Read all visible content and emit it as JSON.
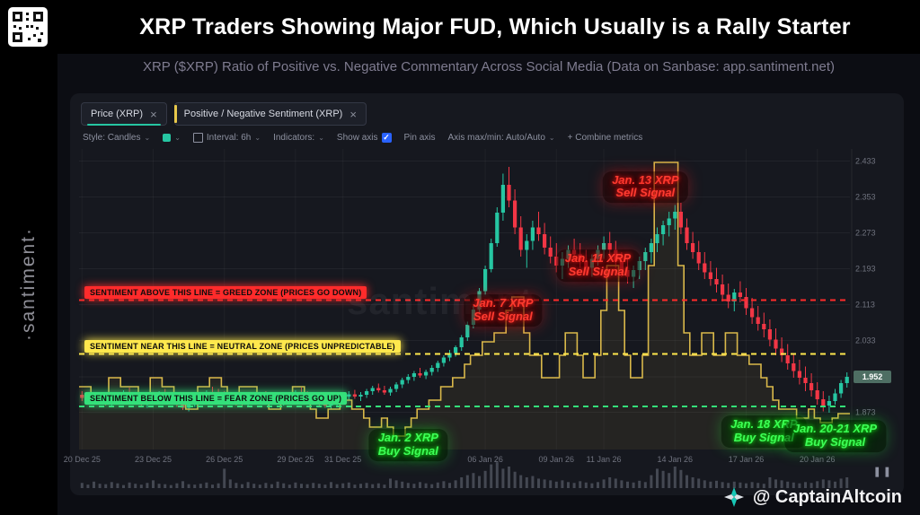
{
  "header": {
    "title": "XRP Traders Showing Major FUD, Which Usually is a Rally Starter",
    "subtitle": "XRP ($XRP) Ratio of Positive vs. Negative Commentary Across Social Media (Data on Sanbase: app.santiment.net)"
  },
  "brand": {
    "vertical_text": "·santiment·"
  },
  "icons": {
    "chevron_down": "⌄",
    "close": "×",
    "check": "✓",
    "pause": "❚❚"
  },
  "chart_tabs": [
    {
      "label": "Price (XRP)",
      "color": "#26c6a2"
    },
    {
      "label": "Positive / Negative Sentiment (XRP)",
      "color": "#e8c84a"
    }
  ],
  "toolbar": {
    "style_label": "Style: Candles",
    "swatch_color": "#26c6a2",
    "interval_label": "Interval: 6h",
    "indicators_label": "Indicators:",
    "show_axis": "Show axis",
    "pin_axis": "Pin axis",
    "axis_maxmin": "Axis max/min: Auto/Auto",
    "combine": "+ Combine metrics"
  },
  "watermark": "santiment",
  "footer": {
    "credit": "@ CaptainAltcoin"
  },
  "chart_data": {
    "type": "candlestick+stepline",
    "interval": "6h",
    "ylim": [
      1.79,
      2.46
    ],
    "grid": true,
    "last_price": "1.952",
    "y_ticks": [
      2.433,
      2.353,
      2.273,
      2.193,
      2.113,
      2.033,
      1.952,
      1.873
    ],
    "x_ticks": [
      {
        "index": 0,
        "label": "20 Dec 25"
      },
      {
        "index": 12,
        "label": "23 Dec 25"
      },
      {
        "index": 24,
        "label": "26 Dec 25"
      },
      {
        "index": 36,
        "label": "29 Dec 25"
      },
      {
        "index": 44,
        "label": "31 Dec 25"
      },
      {
        "index": 68,
        "label": "06 Jan 26"
      },
      {
        "index": 80,
        "label": "09 Jan 26"
      },
      {
        "index": 88,
        "label": "11 Jan 26"
      },
      {
        "index": 100,
        "label": "14 Jan 26"
      },
      {
        "index": 112,
        "label": "17 Jan 26"
      },
      {
        "index": 124,
        "label": "20 Jan 26"
      }
    ],
    "zones": [
      {
        "value": 2.123,
        "color": "#ff2b2b",
        "label": "SENTIMENT ABOVE THIS LINE = GREED ZONE (PRICES GO DOWN)"
      },
      {
        "value": 2.003,
        "color": "#ffe84d",
        "label": "SENTIMENT NEAR THIS LINE = NEUTRAL ZONE (PRICES UNPREDICTABLE)"
      },
      {
        "value": 1.886,
        "color": "#34e07a",
        "label": "SENTIMENT BELOW THIS LINE = FEAR ZONE (PRICES GO UP)"
      }
    ],
    "annotations": [
      {
        "type": "sell",
        "line1": "Jan. 13 XRP",
        "line2": "Sell Signal",
        "x_index": 95,
        "y_value": 2.375
      },
      {
        "type": "sell",
        "line1": "Jan. 11 XRP",
        "line2": "Sell Signal",
        "x_index": 87,
        "y_value": 2.2
      },
      {
        "type": "sell",
        "line1": "Jan. 7 XRP",
        "line2": "Sell Signal",
        "x_index": 71,
        "y_value": 2.1
      },
      {
        "type": "buy",
        "line1": "Jan. 2 XRP",
        "line2": "Buy Signal",
        "x_index": 55,
        "y_value": 1.8
      },
      {
        "type": "buy",
        "line1": "Jan. 18 XRP",
        "line2": "Buy Signal",
        "x_index": 115,
        "y_value": 1.83
      },
      {
        "type": "buy",
        "line1": "Jan. 20-21 XRP",
        "line2": "Buy Signal",
        "x_index": 127,
        "y_value": 1.82
      }
    ],
    "colors": {
      "up": "#26c6a2",
      "down": "#f23645",
      "sentiment": "#d9b84a",
      "badge": "#4e6e63"
    },
    "candles": [
      [
        1.912,
        1.92,
        1.898,
        1.905
      ],
      [
        1.905,
        1.915,
        1.895,
        1.9
      ],
      [
        1.9,
        1.912,
        1.89,
        1.908
      ],
      [
        1.908,
        1.918,
        1.9,
        1.903
      ],
      [
        1.903,
        1.91,
        1.888,
        1.893
      ],
      [
        1.893,
        1.905,
        1.885,
        1.899
      ],
      [
        1.899,
        1.915,
        1.893,
        1.91
      ],
      [
        1.91,
        1.922,
        1.902,
        1.915
      ],
      [
        1.915,
        1.928,
        1.905,
        1.91
      ],
      [
        1.91,
        1.918,
        1.896,
        1.9
      ],
      [
        1.9,
        1.908,
        1.888,
        1.893
      ],
      [
        1.893,
        1.903,
        1.883,
        1.898
      ],
      [
        1.898,
        1.912,
        1.892,
        1.905
      ],
      [
        1.905,
        1.92,
        1.9,
        1.915
      ],
      [
        1.915,
        1.925,
        1.905,
        1.91
      ],
      [
        1.91,
        1.918,
        1.898,
        1.902
      ],
      [
        1.902,
        1.91,
        1.885,
        1.89
      ],
      [
        1.89,
        1.9,
        1.878,
        1.883
      ],
      [
        1.883,
        1.895,
        1.875,
        1.89
      ],
      [
        1.89,
        1.905,
        1.885,
        1.9
      ],
      [
        1.9,
        1.915,
        1.895,
        1.908
      ],
      [
        1.908,
        1.922,
        1.9,
        1.918
      ],
      [
        1.918,
        1.93,
        1.91,
        1.915
      ],
      [
        1.915,
        1.925,
        1.905,
        1.91
      ],
      [
        1.91,
        1.92,
        1.9,
        1.905
      ],
      [
        1.905,
        1.915,
        1.892,
        1.898
      ],
      [
        1.898,
        1.908,
        1.888,
        1.895
      ],
      [
        1.895,
        1.905,
        1.885,
        1.892
      ],
      [
        1.892,
        1.905,
        1.885,
        1.9
      ],
      [
        1.9,
        1.912,
        1.893,
        1.908
      ],
      [
        1.908,
        1.918,
        1.9,
        1.912
      ],
      [
        1.912,
        1.92,
        1.902,
        1.906
      ],
      [
        1.906,
        1.915,
        1.895,
        1.9
      ],
      [
        1.9,
        1.91,
        1.89,
        1.895
      ],
      [
        1.895,
        1.908,
        1.888,
        1.903
      ],
      [
        1.903,
        1.915,
        1.897,
        1.91
      ],
      [
        1.91,
        1.922,
        1.903,
        1.917
      ],
      [
        1.917,
        1.928,
        1.908,
        1.913
      ],
      [
        1.913,
        1.92,
        1.9,
        1.905
      ],
      [
        1.905,
        1.915,
        1.895,
        1.9
      ],
      [
        1.9,
        1.91,
        1.888,
        1.893
      ],
      [
        1.893,
        1.903,
        1.883,
        1.888
      ],
      [
        1.888,
        1.9,
        1.88,
        1.895
      ],
      [
        1.895,
        1.908,
        1.888,
        1.903
      ],
      [
        1.903,
        1.915,
        1.895,
        1.908
      ],
      [
        1.908,
        1.92,
        1.9,
        1.913
      ],
      [
        1.913,
        1.923,
        1.903,
        1.908
      ],
      [
        1.908,
        1.918,
        1.898,
        1.912
      ],
      [
        1.912,
        1.925,
        1.905,
        1.92
      ],
      [
        1.92,
        1.932,
        1.912,
        1.927
      ],
      [
        1.927,
        1.937,
        1.917,
        1.922
      ],
      [
        1.922,
        1.932,
        1.912,
        1.917
      ],
      [
        1.917,
        1.93,
        1.91,
        1.925
      ],
      [
        1.925,
        1.94,
        1.918,
        1.935
      ],
      [
        1.935,
        1.95,
        1.927,
        1.945
      ],
      [
        1.945,
        1.958,
        1.937,
        1.952
      ],
      [
        1.952,
        1.965,
        1.943,
        1.96
      ],
      [
        1.96,
        1.972,
        1.95,
        1.955
      ],
      [
        1.955,
        1.968,
        1.947,
        1.963
      ],
      [
        1.963,
        1.978,
        1.955,
        1.972
      ],
      [
        1.972,
        1.988,
        1.963,
        1.983
      ],
      [
        1.983,
        2.0,
        1.975,
        1.995
      ],
      [
        1.995,
        2.012,
        1.987,
        2.005
      ],
      [
        2.005,
        2.022,
        1.997,
        2.018
      ],
      [
        2.018,
        2.045,
        2.01,
        2.04
      ],
      [
        2.04,
        2.075,
        2.032,
        2.068
      ],
      [
        2.068,
        2.11,
        2.06,
        2.102
      ],
      [
        2.102,
        2.15,
        2.095,
        2.143
      ],
      [
        2.143,
        2.2,
        2.135,
        2.192
      ],
      [
        2.192,
        2.26,
        2.185,
        2.25
      ],
      [
        2.25,
        2.33,
        2.242,
        2.318
      ],
      [
        2.318,
        2.405,
        2.3,
        2.38
      ],
      [
        2.38,
        2.42,
        2.33,
        2.345
      ],
      [
        2.345,
        2.37,
        2.27,
        2.285
      ],
      [
        2.285,
        2.31,
        2.22,
        2.235
      ],
      [
        2.235,
        2.27,
        2.195,
        2.255
      ],
      [
        2.255,
        2.3,
        2.235,
        2.285
      ],
      [
        2.285,
        2.32,
        2.255,
        2.27
      ],
      [
        2.27,
        2.295,
        2.225,
        2.24
      ],
      [
        2.24,
        2.265,
        2.205,
        2.22
      ],
      [
        2.22,
        2.25,
        2.185,
        2.2
      ],
      [
        2.2,
        2.23,
        2.17,
        2.215
      ],
      [
        2.215,
        2.245,
        2.195,
        2.235
      ],
      [
        2.235,
        2.26,
        2.21,
        2.225
      ],
      [
        2.225,
        2.25,
        2.195,
        2.21
      ],
      [
        2.21,
        2.235,
        2.18,
        2.195
      ],
      [
        2.195,
        2.225,
        2.175,
        2.215
      ],
      [
        2.215,
        2.245,
        2.2,
        2.235
      ],
      [
        2.235,
        2.265,
        2.215,
        2.25
      ],
      [
        2.25,
        2.275,
        2.22,
        2.235
      ],
      [
        2.235,
        2.255,
        2.195,
        2.21
      ],
      [
        2.21,
        2.23,
        2.175,
        2.19
      ],
      [
        2.19,
        2.215,
        2.16,
        2.175
      ],
      [
        2.175,
        2.2,
        2.15,
        2.19
      ],
      [
        2.19,
        2.22,
        2.17,
        2.21
      ],
      [
        2.21,
        2.24,
        2.19,
        2.23
      ],
      [
        2.23,
        2.26,
        2.205,
        2.25
      ],
      [
        2.25,
        2.285,
        2.23,
        2.27
      ],
      [
        2.27,
        2.3,
        2.245,
        2.29
      ],
      [
        2.29,
        2.32,
        2.265,
        2.305
      ],
      [
        2.305,
        2.335,
        2.28,
        2.32
      ],
      [
        2.32,
        2.34,
        2.27,
        2.285
      ],
      [
        2.285,
        2.305,
        2.235,
        2.25
      ],
      [
        2.25,
        2.275,
        2.215,
        2.23
      ],
      [
        2.23,
        2.255,
        2.19,
        2.205
      ],
      [
        2.205,
        2.23,
        2.17,
        2.185
      ],
      [
        2.185,
        2.21,
        2.155,
        2.17
      ],
      [
        2.17,
        2.195,
        2.14,
        2.158
      ],
      [
        2.158,
        2.18,
        2.12,
        2.135
      ],
      [
        2.135,
        2.16,
        2.105,
        2.12
      ],
      [
        2.12,
        2.148,
        2.098,
        2.14
      ],
      [
        2.14,
        2.165,
        2.118,
        2.13
      ],
      [
        2.13,
        2.15,
        2.09,
        2.105
      ],
      [
        2.105,
        2.128,
        2.07,
        2.085
      ],
      [
        2.085,
        2.11,
        2.055,
        2.07
      ],
      [
        2.07,
        2.095,
        2.04,
        2.058
      ],
      [
        2.058,
        2.08,
        2.02,
        2.035
      ],
      [
        2.035,
        2.06,
        2.0,
        2.015
      ],
      [
        2.015,
        2.04,
        1.985,
        2.0
      ],
      [
        2.0,
        2.025,
        1.968,
        1.982
      ],
      [
        1.982,
        2.005,
        1.95,
        1.965
      ],
      [
        1.965,
        1.99,
        1.935,
        1.95
      ],
      [
        1.95,
        1.975,
        1.92,
        1.938
      ],
      [
        1.938,
        1.96,
        1.908,
        1.922
      ],
      [
        1.922,
        1.94,
        1.89,
        1.902
      ],
      [
        1.902,
        1.92,
        1.875,
        1.888
      ],
      [
        1.888,
        1.91,
        1.872,
        1.898
      ],
      [
        1.898,
        1.925,
        1.89,
        1.915
      ],
      [
        1.915,
        1.945,
        1.905,
        1.938
      ],
      [
        1.938,
        1.962,
        1.928,
        1.952
      ]
    ],
    "sentiment": [
      1.93,
      1.93,
      1.9,
      1.9,
      1.9,
      1.95,
      1.95,
      1.93,
      1.93,
      1.93,
      1.9,
      1.9,
      1.95,
      1.95,
      1.93,
      1.93,
      1.9,
      1.9,
      1.88,
      1.88,
      1.93,
      1.93,
      1.95,
      1.95,
      1.93,
      1.9,
      1.9,
      1.93,
      1.93,
      1.93,
      1.9,
      1.9,
      1.88,
      1.88,
      1.9,
      1.9,
      1.93,
      1.93,
      1.9,
      1.88,
      1.86,
      1.86,
      1.88,
      1.88,
      1.9,
      1.9,
      1.88,
      1.88,
      1.86,
      1.84,
      1.84,
      1.86,
      1.84,
      1.82,
      1.82,
      1.84,
      1.86,
      1.88,
      1.88,
      1.9,
      1.9,
      1.93,
      1.93,
      1.95,
      1.95,
      1.98,
      2.0,
      2.0,
      2.03,
      2.03,
      2.05,
      2.05,
      2.1,
      2.13,
      2.13,
      2.05,
      2.0,
      2.0,
      1.95,
      1.95,
      1.95,
      2.0,
      2.05,
      2.05,
      2.0,
      1.95,
      1.95,
      2.0,
      2.1,
      2.2,
      2.2,
      2.1,
      2.0,
      1.95,
      1.95,
      2.0,
      2.2,
      2.43,
      2.43,
      2.43,
      2.43,
      2.2,
      2.05,
      2.0,
      2.0,
      2.05,
      2.05,
      2.0,
      2.0,
      2.05,
      2.05,
      2.0,
      2.0,
      1.98,
      1.98,
      1.95,
      1.93,
      1.9,
      1.88,
      1.88,
      1.88,
      1.86,
      1.86,
      1.88,
      1.86,
      1.85,
      1.85,
      1.86,
      1.87,
      1.87
    ],
    "volume": [
      0.12,
      0.08,
      0.15,
      0.1,
      0.09,
      0.14,
      0.11,
      0.07,
      0.13,
      0.1,
      0.08,
      0.12,
      0.18,
      0.1,
      0.09,
      0.07,
      0.11,
      0.16,
      0.09,
      0.08,
      0.1,
      0.13,
      0.08,
      0.11,
      0.45,
      0.2,
      0.12,
      0.09,
      0.14,
      0.1,
      0.08,
      0.12,
      0.09,
      0.15,
      0.11,
      0.08,
      0.13,
      0.1,
      0.09,
      0.12,
      0.1,
      0.08,
      0.14,
      0.09,
      0.11,
      0.13,
      0.08,
      0.1,
      0.12,
      0.09,
      0.11,
      0.08,
      0.22,
      0.18,
      0.15,
      0.12,
      0.1,
      0.14,
      0.11,
      0.09,
      0.13,
      0.16,
      0.12,
      0.18,
      0.25,
      0.3,
      0.35,
      0.28,
      0.4,
      0.55,
      0.6,
      0.45,
      0.5,
      0.38,
      0.3,
      0.25,
      0.28,
      0.22,
      0.2,
      0.18,
      0.15,
      0.18,
      0.14,
      0.12,
      0.16,
      0.13,
      0.11,
      0.14,
      0.2,
      0.25,
      0.22,
      0.18,
      0.15,
      0.13,
      0.17,
      0.14,
      0.3,
      0.45,
      0.4,
      0.35,
      0.5,
      0.42,
      0.3,
      0.25,
      0.22,
      0.18,
      0.15,
      0.17,
      0.14,
      0.12,
      0.15,
      0.13,
      0.11,
      0.14,
      0.12,
      0.1,
      0.25,
      0.2,
      0.18,
      0.15,
      0.13,
      0.11,
      0.14,
      0.12,
      0.16,
      0.2,
      0.18,
      0.15,
      0.22,
      0.25
    ]
  }
}
